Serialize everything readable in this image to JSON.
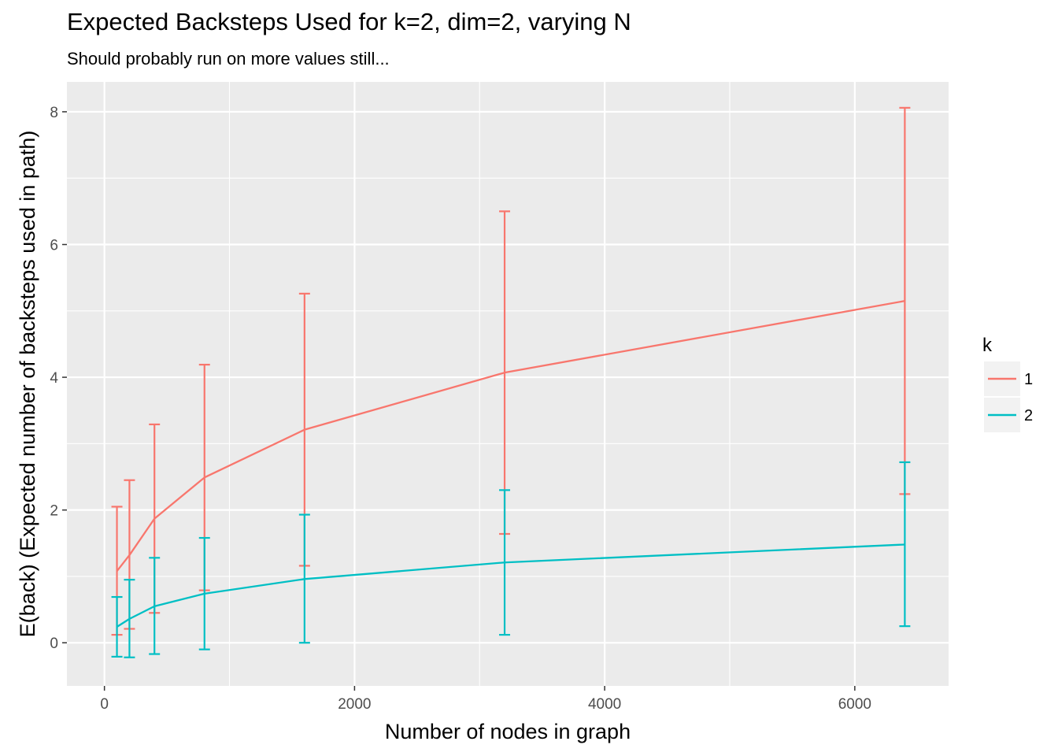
{
  "chart_data": {
    "type": "line",
    "title": "Expected Backsteps Used for k=2, dim=2, varying N",
    "subtitle": "Should probably run on more values still...",
    "xlabel": "Number of nodes in graph",
    "ylabel": "E(back) (Expected number of backsteps used in path)",
    "xlim": [
      -300,
      6750
    ],
    "ylim": [
      -0.65,
      8.45
    ],
    "x_ticks": [
      0,
      2000,
      4000,
      6000
    ],
    "x_tick_labels": [
      "0",
      "2000",
      "4000",
      "6000"
    ],
    "y_ticks": [
      0,
      2,
      4,
      6,
      8
    ],
    "y_tick_labels": [
      "0",
      "2",
      "4",
      "6",
      "8"
    ],
    "grid": true,
    "background": "#ebebeb",
    "legend": {
      "title": "k",
      "position": "right"
    },
    "x": [
      100,
      200,
      400,
      800,
      1600,
      3200,
      6400
    ],
    "series": [
      {
        "name": "1",
        "color": "#f8766d",
        "values": [
          1.08,
          1.32,
          1.87,
          2.49,
          3.21,
          4.07,
          5.15
        ],
        "lower": [
          0.12,
          0.21,
          0.45,
          0.79,
          1.16,
          1.64,
          2.24
        ],
        "upper": [
          2.05,
          2.45,
          3.29,
          4.19,
          5.26,
          6.5,
          8.06
        ]
      },
      {
        "name": "2",
        "color": "#00bfc4",
        "values": [
          0.24,
          0.36,
          0.55,
          0.74,
          0.96,
          1.21,
          1.48
        ],
        "lower": [
          -0.21,
          -0.22,
          -0.17,
          -0.1,
          0.0,
          0.12,
          0.25
        ],
        "upper": [
          0.69,
          0.95,
          1.28,
          1.58,
          1.93,
          2.3,
          2.72
        ]
      }
    ]
  }
}
